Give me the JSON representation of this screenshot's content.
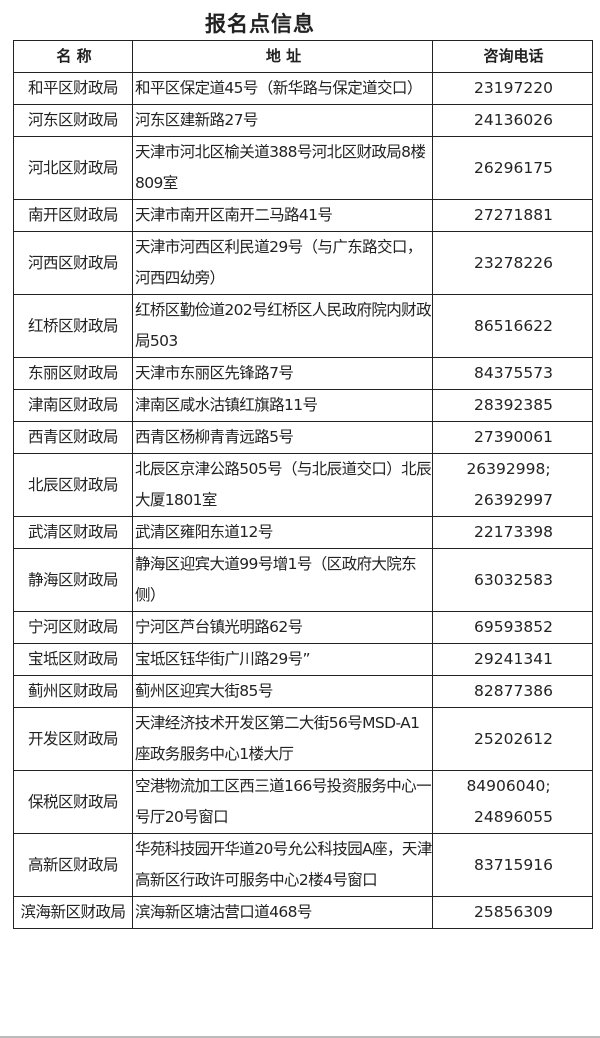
{
  "title": "报名点信息",
  "headers": {
    "name": "名 称",
    "address": "地 址",
    "phone": "咨询电话"
  },
  "rows": [
    {
      "name": "和平区财政局",
      "address": "和平区保定道45号（新华路与保定道交口）",
      "phone": [
        "23197220"
      ]
    },
    {
      "name": "河东区财政局",
      "address": "河东区建新路27号",
      "phone": [
        "24136026"
      ]
    },
    {
      "name": "河北区财政局",
      "address": "天津市河北区榆关道388号河北区财政局8楼809室",
      "phone": [
        "26296175"
      ]
    },
    {
      "name": "南开区财政局",
      "address": "天津市南开区南开二马路41号",
      "phone": [
        "27271881"
      ]
    },
    {
      "name": "河西区财政局",
      "address": "天津市河西区利民道29号（与广东路交口，河西四幼旁）",
      "phone": [
        "23278226"
      ]
    },
    {
      "name": "红桥区财政局",
      "address": "红桥区勤俭道202号红桥区人民政府院内财政局503",
      "phone": [
        "86516622"
      ]
    },
    {
      "name": "东丽区财政局",
      "address": "天津市东丽区先锋路7号",
      "phone": [
        "84375573"
      ]
    },
    {
      "name": "津南区财政局",
      "address": "津南区咸水沽镇红旗路11号",
      "phone": [
        "28392385"
      ]
    },
    {
      "name": "西青区财政局",
      "address": "西青区杨柳青青远路5号",
      "phone": [
        "27390061"
      ]
    },
    {
      "name": "北辰区财政局",
      "address": "北辰区京津公路505号（与北辰道交口）北辰大厦1801室",
      "phone": [
        "26392998;",
        "26392997"
      ]
    },
    {
      "name": "武清区财政局",
      "address": "武清区雍阳东道12号",
      "phone": [
        "22173398"
      ]
    },
    {
      "name": "静海区财政局",
      "address": "静海区迎宾大道99号增1号（区政府大院东侧）",
      "phone": [
        "63032583"
      ]
    },
    {
      "name": "宁河区财政局",
      "address": "宁河区芦台镇光明路62号",
      "phone": [
        "69593852"
      ]
    },
    {
      "name": "宝坻区财政局",
      "address": "宝坻区钰华街广川路29号”",
      "phone": [
        "29241341"
      ]
    },
    {
      "name": "蓟州区财政局",
      "address": "蓟州区迎宾大街85号",
      "phone": [
        "82877386"
      ]
    },
    {
      "name": "开发区财政局",
      "address": "天津经济技术开发区第二大街56号MSD-A1座政务服务中心1楼大厅",
      "phone": [
        "25202612"
      ]
    },
    {
      "name": "保税区财政局",
      "address": "空港物流加工区西三道166号投资服务中心一号厅20号窗口",
      "phone": [
        "84906040;",
        "24896055"
      ]
    },
    {
      "name": "高新区财政局",
      "address": "华苑科技园开华道20号允公科技园A座，天津高新区行政许可服务中心2楼4号窗口",
      "phone": [
        "83715916"
      ]
    },
    {
      "name": "滨海新区财政局",
      "address": "滨海新区塘沽营口道468号",
      "phone": [
        "25856309"
      ]
    }
  ]
}
